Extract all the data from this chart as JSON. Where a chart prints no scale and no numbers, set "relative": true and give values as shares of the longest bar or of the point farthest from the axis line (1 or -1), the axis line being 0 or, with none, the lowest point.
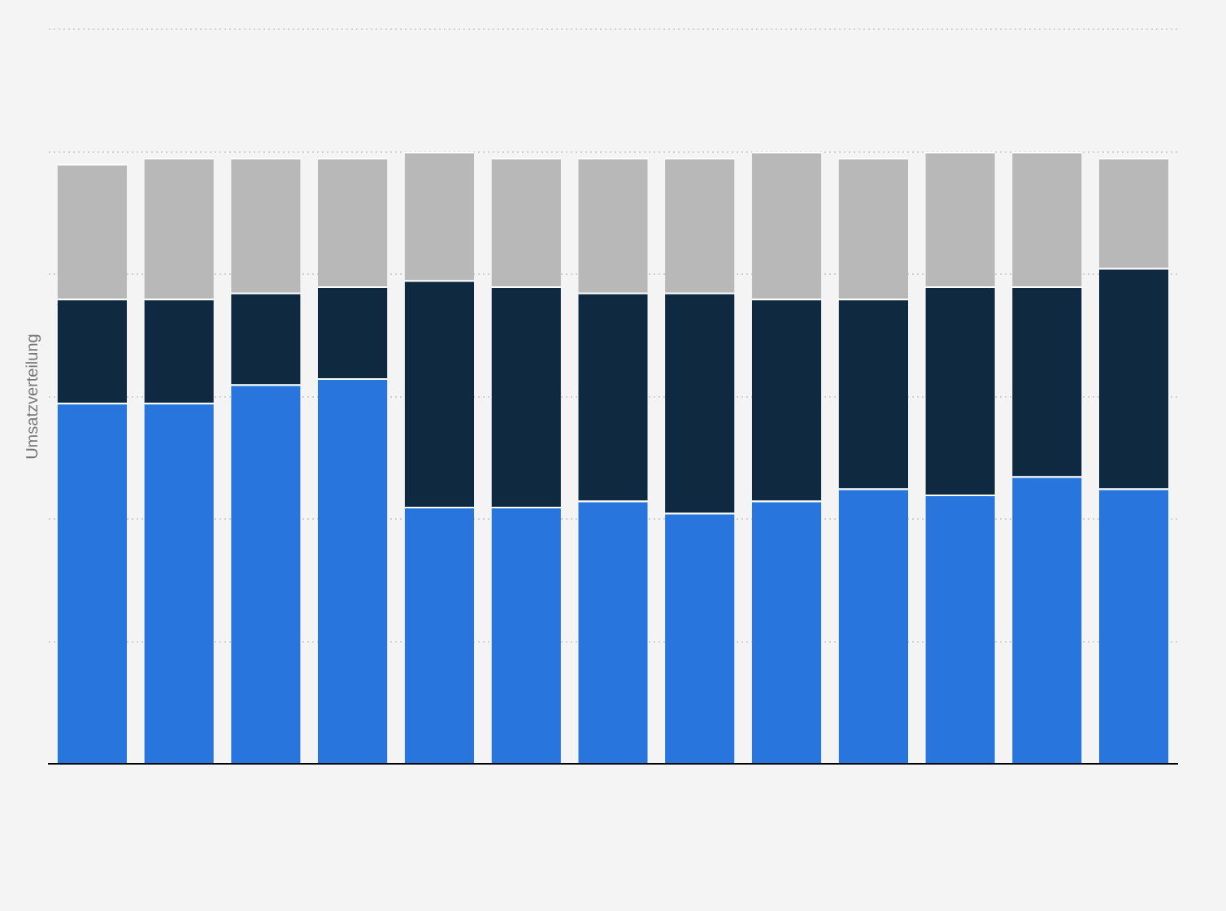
{
  "chart_data": {
    "type": "bar",
    "ylabel": "Umsatzverteilung",
    "relative": true,
    "stacked": true,
    "grid": "y",
    "legend": false,
    "categories": [
      null,
      null,
      null,
      null,
      null,
      null,
      null,
      null,
      null,
      null,
      null,
      null,
      null
    ],
    "series": [
      {
        "color": "#2876dd",
        "values": [
          0.59,
          0.59,
          0.62,
          0.63,
          0.42,
          0.42,
          0.43,
          0.41,
          0.43,
          0.45,
          0.44,
          0.47,
          0.45
        ]
      },
      {
        "color": "#0f2a40",
        "values": [
          0.17,
          0.17,
          0.15,
          0.15,
          0.37,
          0.36,
          0.34,
          0.36,
          0.33,
          0.31,
          0.34,
          0.31,
          0.36
        ]
      },
      {
        "color": "#b8b8b8",
        "values": [
          0.22,
          0.23,
          0.22,
          0.21,
          0.21,
          0.21,
          0.22,
          0.22,
          0.24,
          0.23,
          0.22,
          0.22,
          0.18
        ]
      }
    ]
  }
}
